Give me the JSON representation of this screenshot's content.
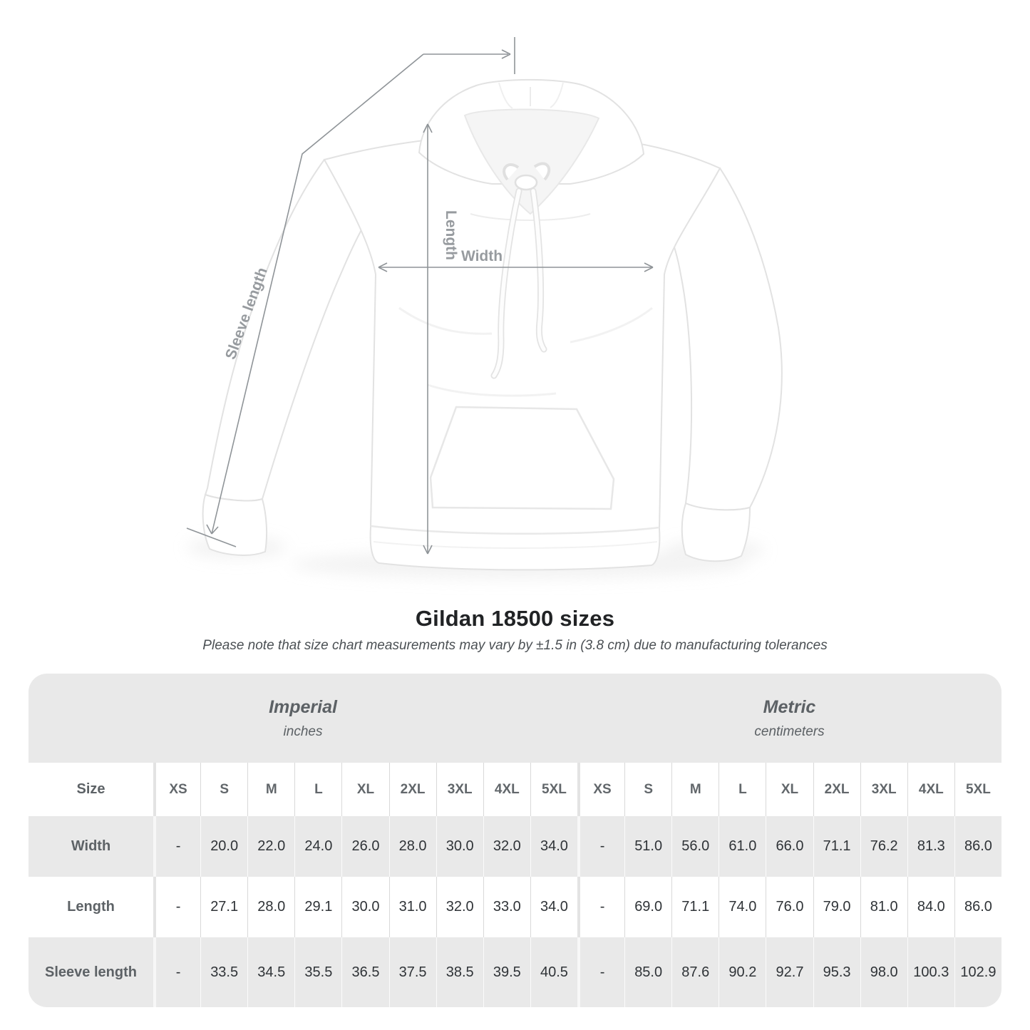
{
  "diagram": {
    "sleeve_length_label": "Sleeve length",
    "length_label": "Length",
    "width_label": "Width",
    "line_color": "#8f9498"
  },
  "header": {
    "title": "Gildan 18500 sizes",
    "subtitle": "Please note that size chart measurements may vary by ±1.5 in (3.8 cm) due to manufacturing tolerances"
  },
  "table": {
    "size_column_header": "Size",
    "groups": [
      {
        "label": "Imperial",
        "unit": "inches"
      },
      {
        "label": "Metric",
        "unit": "centimeters"
      }
    ],
    "sizes": [
      "XS",
      "S",
      "M",
      "L",
      "XL",
      "2XL",
      "3XL",
      "4XL",
      "5XL"
    ],
    "rows": [
      {
        "label": "Width",
        "imperial": [
          "-",
          "20.0",
          "22.0",
          "24.0",
          "26.0",
          "28.0",
          "30.0",
          "32.0",
          "34.0"
        ],
        "metric": [
          "-",
          "51.0",
          "56.0",
          "61.0",
          "66.0",
          "71.1",
          "76.2",
          "81.3",
          "86.0"
        ]
      },
      {
        "label": "Length",
        "imperial": [
          "-",
          "27.1",
          "28.0",
          "29.1",
          "30.0",
          "31.0",
          "32.0",
          "33.0",
          "34.0"
        ],
        "metric": [
          "-",
          "69.0",
          "71.1",
          "74.0",
          "76.0",
          "79.0",
          "81.0",
          "84.0",
          "86.0"
        ]
      },
      {
        "label": "Sleeve length",
        "imperial": [
          "-",
          "33.5",
          "34.5",
          "35.5",
          "36.5",
          "37.5",
          "38.5",
          "39.5",
          "40.5"
        ],
        "metric": [
          "-",
          "85.0",
          "87.6",
          "90.2",
          "92.7",
          "95.3",
          "98.0",
          "100.3",
          "102.9"
        ]
      }
    ]
  }
}
